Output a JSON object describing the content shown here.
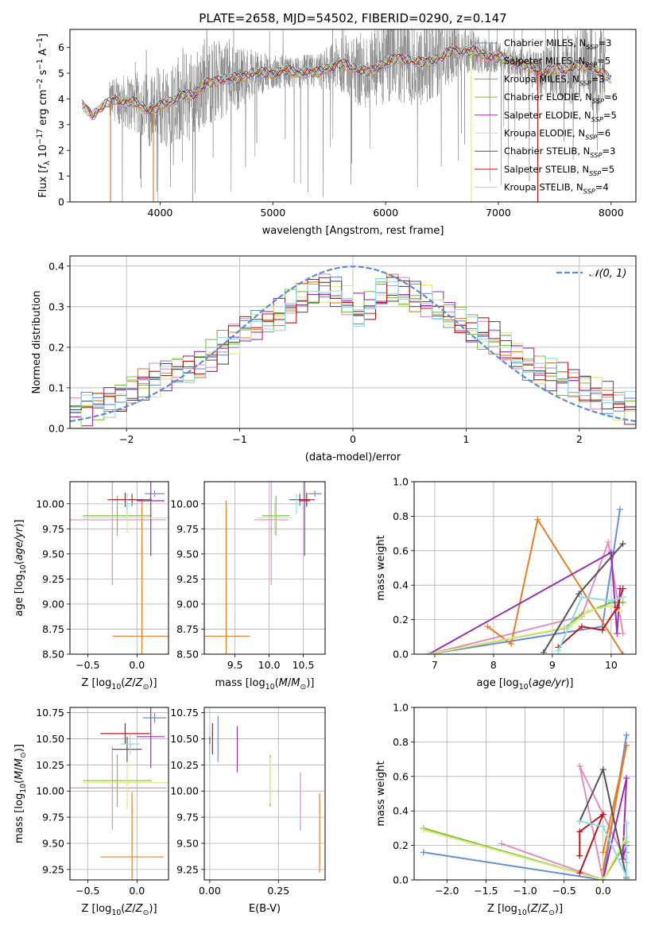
{
  "figure": {
    "title": "PLATE=2658, MJD=54502, FIBERID=0290, z=0.147"
  },
  "chart_data": [
    {
      "id": "spectrum",
      "type": "line",
      "xlabel": "wavelength [Angstrom, rest frame]",
      "ylabel": "Flux [f_λ 10^-17 erg cm^-2 s^-1 A^-1]",
      "xlim": [
        3200,
        8220
      ],
      "ylim": [
        0,
        6.7
      ],
      "xticks": [
        4000,
        5000,
        6000,
        7000,
        8000
      ],
      "yticks": [
        0,
        1,
        2,
        3,
        4,
        5,
        6
      ],
      "grid": false,
      "legend_placement": "right",
      "legend": [
        {
          "label": "Chabrier MILES, N_SSP=3",
          "color": "#6a8ed6"
        },
        {
          "label": "Salpeter MILES, N_SSP=5",
          "color": "#e28ec0"
        },
        {
          "label": "Kroupa MILES, N_SSP=3",
          "color": "#e07f2a"
        },
        {
          "label": "Chabrier ELODIE, N_SSP=6",
          "color": "#7dbf3c"
        },
        {
          "label": "Salpeter ELODIE, N_SSP=5",
          "color": "#9b2fae"
        },
        {
          "label": "Kroupa ELODIE, N_SSP=6",
          "color": "#dde87a"
        },
        {
          "label": "Chabrier STELIB, N_SSP=3",
          "color": "#555555"
        },
        {
          "label": "Salpeter STELIB, N_SSP=5",
          "color": "#b31b1b"
        },
        {
          "label": "Kroupa STELIB, N_SSP=4",
          "color": "#8fdbe6"
        }
      ],
      "data_color": "#808080",
      "model_curve": {
        "x": [
          3310,
          3400,
          3500,
          3600,
          3700,
          3800,
          3900,
          4000,
          4100,
          4200,
          4300,
          4400,
          4500,
          4600,
          4700,
          4800,
          4900,
          5000,
          5100,
          5200,
          5300,
          5400,
          5500,
          5600,
          5700,
          5800,
          5900,
          6000,
          6100,
          6200,
          6300,
          6400,
          6500,
          6600,
          6700,
          6800,
          6900,
          7000,
          7100,
          7200,
          7300,
          7400,
          7500,
          7600,
          7700,
          7800,
          7900,
          8000
        ],
        "y": [
          3.8,
          3.4,
          3.7,
          4.0,
          3.9,
          3.8,
          3.6,
          3.7,
          3.9,
          4.2,
          4.1,
          4.6,
          4.7,
          4.8,
          4.8,
          5.0,
          5.0,
          5.0,
          5.1,
          5.0,
          5.1,
          5.0,
          5.2,
          5.4,
          5.2,
          5.1,
          5.1,
          5.4,
          5.6,
          5.5,
          5.4,
          5.5,
          5.6,
          5.9,
          5.9,
          5.8,
          5.7,
          5.6,
          5.5,
          5.4,
          5.2,
          5.0,
          5.2,
          5.1,
          5.3,
          5.3,
          5.0,
          4.8
        ]
      }
    },
    {
      "id": "residuals",
      "type": "line",
      "xlabel": "(data-model)/error",
      "ylabel": "Normed distribution",
      "xlim": [
        -2.5,
        2.5
      ],
      "ylim": [
        0,
        0.425
      ],
      "xticks": [
        -2,
        -1,
        0,
        1,
        2
      ],
      "yticks": [
        0.0,
        0.1,
        0.2,
        0.3,
        0.4
      ],
      "grid": true,
      "legend_placement": "top-right",
      "legend": [
        {
          "label": "𝒩(0,1)",
          "color": "#5b8bd9",
          "style": "dashed"
        }
      ],
      "bin_width": 0.1,
      "base_hist": [
        0.04,
        0.05,
        0.06,
        0.07,
        0.08,
        0.1,
        0.11,
        0.12,
        0.13,
        0.14,
        0.15,
        0.16,
        0.18,
        0.2,
        0.22,
        0.24,
        0.25,
        0.27,
        0.28,
        0.3,
        0.32,
        0.33,
        0.34,
        0.33,
        0.31,
        0.29,
        0.3,
        0.33,
        0.34,
        0.33,
        0.32,
        0.31,
        0.3,
        0.28,
        0.26,
        0.24,
        0.23,
        0.22,
        0.2,
        0.18,
        0.16,
        0.14,
        0.13,
        0.12,
        0.11,
        0.1,
        0.09,
        0.08,
        0.06,
        0.05
      ],
      "series_colors": [
        "#6a8ed6",
        "#e28ec0",
        "#e07f2a",
        "#7dbf3c",
        "#9b2fae",
        "#dde87a",
        "#555555",
        "#b31b1b",
        "#8fdbe6"
      ]
    },
    {
      "id": "age_vs_Z",
      "type": "scatter",
      "xlabel": "Z [log10(Z/Z⊙)]",
      "ylabel": "age  [log10(age/yr)]",
      "xlim": [
        -0.68,
        0.32
      ],
      "ylim": [
        8.5,
        10.22
      ],
      "xticks": [
        -0.5,
        0.0
      ],
      "yticks": [
        8.5,
        8.75,
        9.0,
        9.25,
        9.5,
        9.75,
        10.0
      ],
      "grid": true,
      "errorbars": [
        {
          "color": "#6a8ed6",
          "x": 0.18,
          "y": 10.1,
          "xerr": 0.1,
          "yerr": 0.03
        },
        {
          "color": "#e28ec0",
          "x": -0.25,
          "y": 9.84,
          "xerr": 0.55,
          "yerr": 0.65
        },
        {
          "color": "#e07f2a",
          "x": 0.05,
          "y": 8.68,
          "xerr": 0.3,
          "yerr": 1.35
        },
        {
          "color": "#7dbf3c",
          "x": -0.2,
          "y": 9.88,
          "xerr": 0.35,
          "yerr": 0.2
        },
        {
          "color": "#9b2fae",
          "x": 0.14,
          "y": 10.03,
          "xerr": 0.14,
          "yerr": 0.55
        },
        {
          "color": "#dde87a",
          "x": -0.1,
          "y": 9.86,
          "xerr": 0.45,
          "yerr": 0.15
        },
        {
          "color": "#555555",
          "x": -0.05,
          "y": 10.04,
          "xerr": 0.2,
          "yerr": 0.06
        },
        {
          "color": "#b31b1b",
          "x": -0.12,
          "y": 10.04,
          "xerr": 0.18,
          "yerr": 0.07
        },
        {
          "color": "#8fdbe6",
          "x": -0.1,
          "y": 10.0,
          "xerr": 0.1,
          "yerr": 0.1
        }
      ]
    },
    {
      "id": "age_vs_mass",
      "type": "scatter",
      "xlabel": "mass [log10(M/M⊙)]",
      "ylabel": "",
      "xlim": [
        9.05,
        10.82
      ],
      "ylim": [
        8.5,
        10.22
      ],
      "xticks": [
        9.5,
        10.0,
        10.5
      ],
      "yticks": [
        8.5,
        8.75,
        9.0,
        9.25,
        9.5,
        9.75,
        10.0
      ],
      "grid": true,
      "errorbars": [
        {
          "color": "#6a8ed6",
          "x": 10.67,
          "y": 10.1,
          "xerr": 0.1,
          "yerr": 0.03
        },
        {
          "color": "#e28ec0",
          "x": 10.03,
          "y": 9.84,
          "xerr": 0.25,
          "yerr": 0.65
        },
        {
          "color": "#e07f2a",
          "x": 9.37,
          "y": 8.68,
          "xerr": 0.35,
          "yerr": 1.35
        },
        {
          "color": "#7dbf3c",
          "x": 10.1,
          "y": 9.88,
          "xerr": 0.2,
          "yerr": 0.2
        },
        {
          "color": "#9b2fae",
          "x": 10.52,
          "y": 10.03,
          "xerr": 0.08,
          "yerr": 0.55
        },
        {
          "color": "#dde87a",
          "x": 10.08,
          "y": 9.86,
          "xerr": 0.25,
          "yerr": 0.15
        },
        {
          "color": "#555555",
          "x": 10.45,
          "y": 10.04,
          "xerr": 0.15,
          "yerr": 0.06
        },
        {
          "color": "#b31b1b",
          "x": 10.55,
          "y": 10.04,
          "xerr": 0.12,
          "yerr": 0.07
        },
        {
          "color": "#8fdbe6",
          "x": 10.4,
          "y": 10.0,
          "xerr": 0.1,
          "yerr": 0.1
        }
      ]
    },
    {
      "id": "weight_vs_age",
      "type": "line",
      "xlabel": "age  [log10(age/yr)]",
      "ylabel": "mass weight",
      "xlim": [
        6.65,
        10.42
      ],
      "ylim": [
        0,
        1.0
      ],
      "xticks": [
        7,
        8,
        9,
        10
      ],
      "yticks": [
        0.0,
        0.2,
        0.4,
        0.6,
        0.8,
        1.0
      ],
      "grid": true,
      "series": [
        {
          "color": "#6a8ed6",
          "x": [
            6.9,
            9.85,
            10.15
          ],
          "y": [
            0.0,
            0.16,
            0.84
          ]
        },
        {
          "color": "#e28ec0",
          "x": [
            6.9,
            9.5,
            9.95,
            10.2
          ],
          "y": [
            0.0,
            0.22,
            0.65,
            0.12
          ]
        },
        {
          "color": "#e07f2a",
          "x": [
            7.9,
            8.3,
            8.75,
            10.2
          ],
          "y": [
            0.16,
            0.06,
            0.78,
            0.0
          ]
        },
        {
          "color": "#7dbf3c",
          "x": [
            6.9,
            9.2,
            9.5,
            10.0,
            10.2
          ],
          "y": [
            0.0,
            0.15,
            0.23,
            0.3,
            0.3
          ]
        },
        {
          "color": "#9b2fae",
          "x": [
            6.9,
            10.0,
            10.1,
            10.15
          ],
          "y": [
            0.0,
            0.59,
            0.12,
            0.38
          ]
        },
        {
          "color": "#dde87a",
          "x": [
            6.9,
            9.3,
            9.6,
            10.0,
            10.15
          ],
          "y": [
            0.0,
            0.16,
            0.25,
            0.28,
            0.25
          ]
        },
        {
          "color": "#555555",
          "x": [
            8.85,
            9.45,
            10.2
          ],
          "y": [
            0.01,
            0.35,
            0.64
          ]
        },
        {
          "color": "#b31b1b",
          "x": [
            9.1,
            9.5,
            9.85,
            10.1,
            10.2
          ],
          "y": [
            0.04,
            0.16,
            0.14,
            0.27,
            0.38
          ]
        },
        {
          "color": "#8fdbe6",
          "x": [
            9.1,
            9.5,
            10.0,
            10.2
          ],
          "y": [
            0.02,
            0.33,
            0.31,
            0.33
          ]
        }
      ]
    },
    {
      "id": "mass_vs_Z",
      "type": "scatter",
      "xlabel": "Z [log10(Z/Z⊙)]",
      "ylabel": "mass [log10(M/M⊙)]",
      "xlim": [
        -0.68,
        0.32
      ],
      "ylim": [
        9.15,
        10.8
      ],
      "xticks": [
        -0.5,
        0.0
      ],
      "yticks": [
        9.25,
        9.5,
        9.75,
        10.0,
        10.25,
        10.5,
        10.75
      ],
      "grid": true,
      "errorbars": [
        {
          "color": "#6a8ed6",
          "x": 0.18,
          "y": 10.7,
          "xerr": 0.12,
          "yerr": 0.05
        },
        {
          "color": "#e28ec0",
          "x": -0.25,
          "y": 10.03,
          "xerr": 0.55,
          "yerr": 0.4
        },
        {
          "color": "#e07f2a",
          "x": -0.05,
          "y": 9.37,
          "xerr": 0.32,
          "yerr": 0.62
        },
        {
          "color": "#7dbf3c",
          "x": -0.2,
          "y": 10.1,
          "xerr": 0.35,
          "yerr": 0.25
        },
        {
          "color": "#9b2fae",
          "x": 0.14,
          "y": 10.52,
          "xerr": 0.14,
          "yerr": 0.3
        },
        {
          "color": "#dde87a",
          "x": -0.1,
          "y": 10.08,
          "xerr": 0.45,
          "yerr": 0.25
        },
        {
          "color": "#555555",
          "x": -0.1,
          "y": 10.4,
          "xerr": 0.15,
          "yerr": 0.12
        },
        {
          "color": "#b31b1b",
          "x": -0.12,
          "y": 10.55,
          "xerr": 0.25,
          "yerr": 0.1
        },
        {
          "color": "#8fdbe6",
          "x": -0.07,
          "y": 10.45,
          "xerr": 0.1,
          "yerr": 0.1
        }
      ]
    },
    {
      "id": "mass_vs_ebv",
      "type": "scatter",
      "xlabel": "E(B-V)",
      "ylabel": "",
      "xlim": [
        -0.02,
        0.42
      ],
      "ylim": [
        9.15,
        10.8
      ],
      "xticks": [
        0.0,
        0.25
      ],
      "yticks": [
        9.25,
        9.5,
        9.75,
        10.0,
        10.25,
        10.5,
        10.75
      ],
      "grid": true,
      "errorbars": [
        {
          "color": "#6a8ed6",
          "x": 0.03,
          "y": 10.5,
          "yerr": 0.22
        },
        {
          "color": "#e28ec0",
          "x": 0.33,
          "y": 9.9,
          "yerr": 0.28
        },
        {
          "color": "#e07f2a",
          "x": 0.4,
          "y": 9.6,
          "yerr": 0.38
        },
        {
          "color": "#7dbf3c",
          "x": 0.22,
          "y": 10.1,
          "yerr": 0.25
        },
        {
          "color": "#9b2fae",
          "x": 0.1,
          "y": 10.4,
          "yerr": 0.22
        },
        {
          "color": "#dde87a",
          "x": 0.22,
          "y": 10.1,
          "yerr": 0.22
        },
        {
          "color": "#555555",
          "x": 0.0,
          "y": 10.4,
          "yerr": 0.12
        },
        {
          "color": "#b31b1b",
          "x": 0.01,
          "y": 10.5,
          "yerr": 0.15
        },
        {
          "color": "#8fdbe6",
          "x": 0.0,
          "y": 10.35,
          "yerr": 0.1
        }
      ]
    },
    {
      "id": "weight_vs_Z",
      "type": "line",
      "xlabel": "Z [log10(Z/Z⊙)]",
      "ylabel": "mass weight",
      "xlim": [
        -2.42,
        0.42
      ],
      "ylim": [
        0,
        1.0
      ],
      "xticks": [
        -2.0,
        -1.5,
        -1.0,
        -0.5,
        0.0
      ],
      "yticks": [
        0.0,
        0.2,
        0.4,
        0.6,
        0.8,
        1.0
      ],
      "grid": true,
      "series": [
        {
          "color": "#6a8ed6",
          "x": [
            -2.3,
            0.0,
            0.3
          ],
          "y": [
            0.16,
            0.0,
            0.84
          ]
        },
        {
          "color": "#e28ec0",
          "x": [
            -1.3,
            0.0,
            -0.3,
            0.3
          ],
          "y": [
            0.21,
            0.0,
            0.66,
            0.1
          ]
        },
        {
          "color": "#e07f2a",
          "x": [
            0.0,
            0.3,
            0.0
          ],
          "y": [
            0.16,
            0.78,
            0.06
          ]
        },
        {
          "color": "#7dbf3c",
          "x": [
            -2.3,
            0.0,
            0.3,
            0.3
          ],
          "y": [
            0.3,
            0.0,
            0.22,
            0.16
          ]
        },
        {
          "color": "#9b2fae",
          "x": [
            0.0,
            0.3,
            0.25,
            0.3
          ],
          "y": [
            0.0,
            0.59,
            0.12,
            0.2
          ]
        },
        {
          "color": "#dde87a",
          "x": [
            -2.3,
            0.0,
            0.3
          ],
          "y": [
            0.29,
            0.0,
            0.25
          ]
        },
        {
          "color": "#555555",
          "x": [
            -0.3,
            0.0,
            0.3
          ],
          "y": [
            0.34,
            0.64,
            0.01
          ]
        },
        {
          "color": "#b31b1b",
          "x": [
            -0.3,
            -0.3,
            0.0,
            -0.3
          ],
          "y": [
            0.14,
            0.28,
            0.38,
            0.04
          ]
        },
        {
          "color": "#8fdbe6",
          "x": [
            -0.3,
            0.0,
            0.3,
            0.3
          ],
          "y": [
            0.34,
            0.31,
            0.02,
            0.33
          ]
        }
      ]
    }
  ]
}
